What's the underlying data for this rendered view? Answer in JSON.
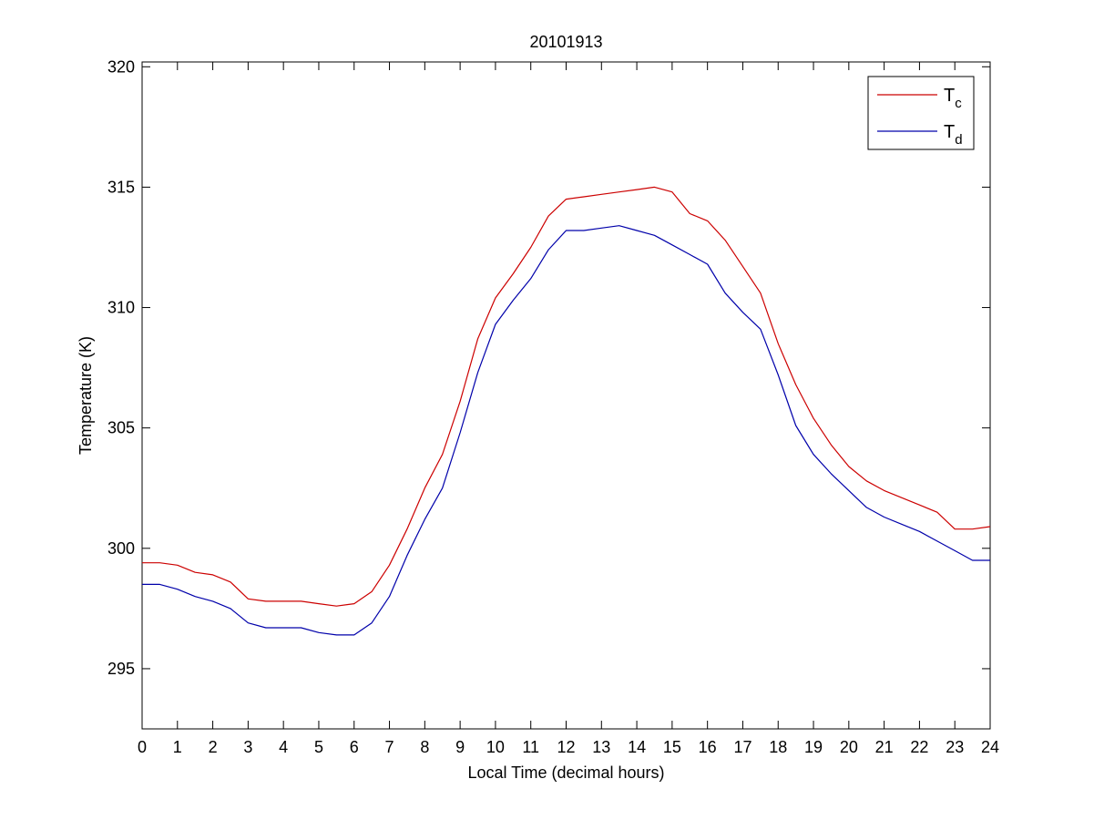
{
  "chart_data": {
    "type": "line",
    "title": "20101913",
    "xlabel": "Local Time (decimal hours)",
    "ylabel": "Temperature (K)",
    "xlim": [
      0,
      24
    ],
    "ylim": [
      292.5,
      320.2
    ],
    "xticks": [
      0,
      1,
      2,
      3,
      4,
      5,
      6,
      7,
      8,
      9,
      10,
      11,
      12,
      13,
      14,
      15,
      16,
      17,
      18,
      19,
      20,
      21,
      22,
      23,
      24
    ],
    "yticks": [
      295,
      300,
      305,
      310,
      315,
      320
    ],
    "grid": false,
    "legend_position": "top-right",
    "series": [
      {
        "name": "T",
        "subscript": "c",
        "color": "#cc0000",
        "x": [
          0,
          0.5,
          1,
          1.5,
          2,
          2.5,
          3,
          3.5,
          4,
          4.5,
          5,
          5.5,
          6,
          6.5,
          7,
          7.5,
          8,
          8.5,
          9,
          9.5,
          10,
          10.5,
          11,
          11.5,
          12,
          12.5,
          13,
          13.5,
          14,
          14.5,
          15,
          15.5,
          16,
          16.5,
          17,
          17.5,
          18,
          18.5,
          19,
          19.5,
          20,
          20.5,
          21,
          21.5,
          22,
          22.5,
          23,
          23.5,
          24
        ],
        "values": [
          299.4,
          299.4,
          299.3,
          299.0,
          298.9,
          298.6,
          297.9,
          297.8,
          297.8,
          297.8,
          297.7,
          297.6,
          297.7,
          298.2,
          299.3,
          300.8,
          302.5,
          303.9,
          306.1,
          308.7,
          310.4,
          311.4,
          312.5,
          313.8,
          314.5,
          314.6,
          314.7,
          314.8,
          314.9,
          315.0,
          314.8,
          313.9,
          313.6,
          312.8,
          311.7,
          310.6,
          308.5,
          306.8,
          305.4,
          304.3,
          303.4,
          302.8,
          302.4,
          302.1,
          301.8,
          301.5,
          300.8,
          300.8,
          300.9
        ]
      },
      {
        "name": "T",
        "subscript": "d",
        "color": "#0000aa",
        "x": [
          0,
          0.5,
          1,
          1.5,
          2,
          2.5,
          3,
          3.5,
          4,
          4.5,
          5,
          5.5,
          6,
          6.5,
          7,
          7.5,
          8,
          8.5,
          9,
          9.5,
          10,
          10.5,
          11,
          11.5,
          12,
          12.5,
          13,
          13.5,
          14,
          14.5,
          15,
          15.5,
          16,
          16.5,
          17,
          17.5,
          18,
          18.5,
          19,
          19.5,
          20,
          20.5,
          21,
          21.5,
          22,
          22.5,
          23,
          23.5,
          24
        ],
        "values": [
          298.5,
          298.5,
          298.3,
          298.0,
          297.8,
          297.5,
          296.9,
          296.7,
          296.7,
          296.7,
          296.5,
          296.4,
          296.4,
          296.9,
          298.0,
          299.7,
          301.2,
          302.5,
          304.8,
          307.3,
          309.3,
          310.3,
          311.2,
          312.4,
          313.2,
          313.2,
          313.3,
          313.4,
          313.2,
          313.0,
          312.6,
          312.2,
          311.8,
          310.6,
          309.8,
          309.1,
          307.2,
          305.1,
          303.9,
          303.1,
          302.4,
          301.7,
          301.3,
          301.0,
          300.7,
          300.3,
          299.9,
          299.5,
          299.5
        ]
      }
    ]
  }
}
